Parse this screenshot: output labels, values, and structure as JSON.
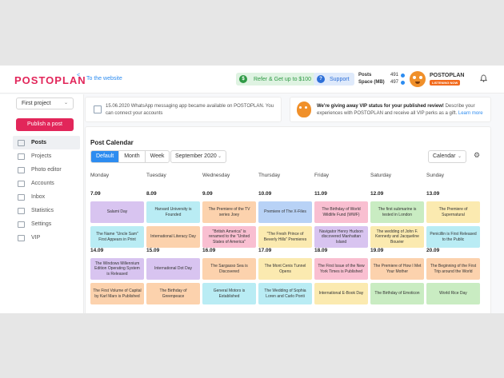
{
  "header": {
    "logo": "POSTOPLAN",
    "to_website": "To the website",
    "refer_label": "Refer & Get up to $100",
    "support_label": "Support",
    "posts_label": "Posts",
    "posts_count": "491",
    "space_label": "Space (MB)",
    "space_count": "497",
    "brand_name": "POSTOPLAN",
    "listening_badge": "LISTENING NOW",
    "icons": [
      "share-icon",
      "dollar-icon",
      "question-icon",
      "bell-icon"
    ]
  },
  "sidebar": {
    "project": "First project",
    "publish_label": "Publish a post",
    "items": [
      {
        "label": "Posts",
        "active": true,
        "icon": "posts-icon"
      },
      {
        "label": "Projects",
        "active": false,
        "icon": "projects-icon"
      },
      {
        "label": "Photo editor",
        "active": false,
        "icon": "photo-editor-icon"
      },
      {
        "label": "Accounts",
        "active": false,
        "icon": "accounts-icon"
      },
      {
        "label": "Inbox",
        "active": false,
        "icon": "inbox-icon"
      },
      {
        "label": "Statistics",
        "active": false,
        "icon": "statistics-icon"
      },
      {
        "label": "Settings",
        "active": false,
        "icon": "settings-icon"
      },
      {
        "label": "VIP",
        "active": false,
        "icon": "vip-icon"
      }
    ]
  },
  "banners": {
    "whatsapp": "15.06.2020 WhatsApp messaging app became available on POSTOPLAN. You can connect your accounts",
    "vip_bold": "We're giving away VIP status for your published review!",
    "vip_text": " Describe your experiences with POSTOPLAN and receive all VIP perks as a gift.",
    "vip_link": "Learn more"
  },
  "calendar": {
    "title": "Post Calendar",
    "views": [
      "Default",
      "Month",
      "Week"
    ],
    "active_view": "Default",
    "month": "September 2020",
    "calendar_select": "Calendar",
    "days": [
      "Monday",
      "Tuesday",
      "Wednesday",
      "Thursday",
      "Friday",
      "Saturday",
      "Sunday"
    ],
    "weeks": [
      {
        "dates": [
          "7.09",
          "8.09",
          "9.09",
          "10.09",
          "11.09",
          "12.09",
          "13.09"
        ],
        "row1": [
          {
            "text": "Salami Day",
            "color": "purple"
          },
          {
            "text": "Harvard University is Founded",
            "color": "cyan"
          },
          {
            "text": "The Premiere of the TV series Joey",
            "color": "orange"
          },
          {
            "text": "Premiere of The X-Files",
            "color": "blue"
          },
          {
            "text": "The Birthday of World Wildlife Fund (WWF)",
            "color": "pink"
          },
          {
            "text": "The first submarine is tested in London",
            "color": "green"
          },
          {
            "text": "The Premiere of Supernatural",
            "color": "yellow"
          }
        ],
        "row2": [
          {
            "text": "The Name \"Uncle Sam\" First Appears in Print",
            "color": "cyan"
          },
          {
            "text": "International Literacy Day",
            "color": "orange"
          },
          {
            "text": "\"British America\" is renamed to the \"United States of America\"",
            "color": "pink"
          },
          {
            "text": "\"The Fresh Prince of Beverly Hills\" Premieres",
            "color": "yellow"
          },
          {
            "text": "Navigator Henry Hudson discovered Manhattan Island",
            "color": "purple"
          },
          {
            "text": "The wedding of John F. Kennedy and Jacqueline Bouvier",
            "color": "yellow"
          },
          {
            "text": "Penicillin is First Released to the Public",
            "color": "cyan"
          }
        ]
      },
      {
        "dates": [
          "14.09",
          "15.09",
          "16.09",
          "17.09",
          "18.09",
          "19.09",
          "20.09"
        ],
        "row1": [
          {
            "text": "The Windows Millennium Edition Operating System is Released",
            "color": "purple"
          },
          {
            "text": "International Dot Day",
            "color": "purple"
          },
          {
            "text": "The Sargasso Sea is Discovered",
            "color": "orange"
          },
          {
            "text": "The Mont Cenis Tunnel Opens",
            "color": "yellow"
          },
          {
            "text": "The First Issue of the New York Times is Published",
            "color": "pink"
          },
          {
            "text": "The Premiere of How I Met Your Mother",
            "color": "orange"
          },
          {
            "text": "The Beginning of the First Trip around the World",
            "color": "orange"
          }
        ],
        "row2": [
          {
            "text": "The First Volume of Capital by Karl Marx is Published",
            "color": "orange"
          },
          {
            "text": "The Birthday of Greenpeace",
            "color": "orange"
          },
          {
            "text": "General Motors is Established",
            "color": "cyan"
          },
          {
            "text": "The Wedding of Sophia Loren and Carlo Ponti",
            "color": "cyan"
          },
          {
            "text": "International E-Book Day",
            "color": "yellow"
          },
          {
            "text": "The Birthday of Emoticon",
            "color": "green"
          },
          {
            "text": "World Rice Day",
            "color": "green"
          }
        ]
      }
    ]
  }
}
